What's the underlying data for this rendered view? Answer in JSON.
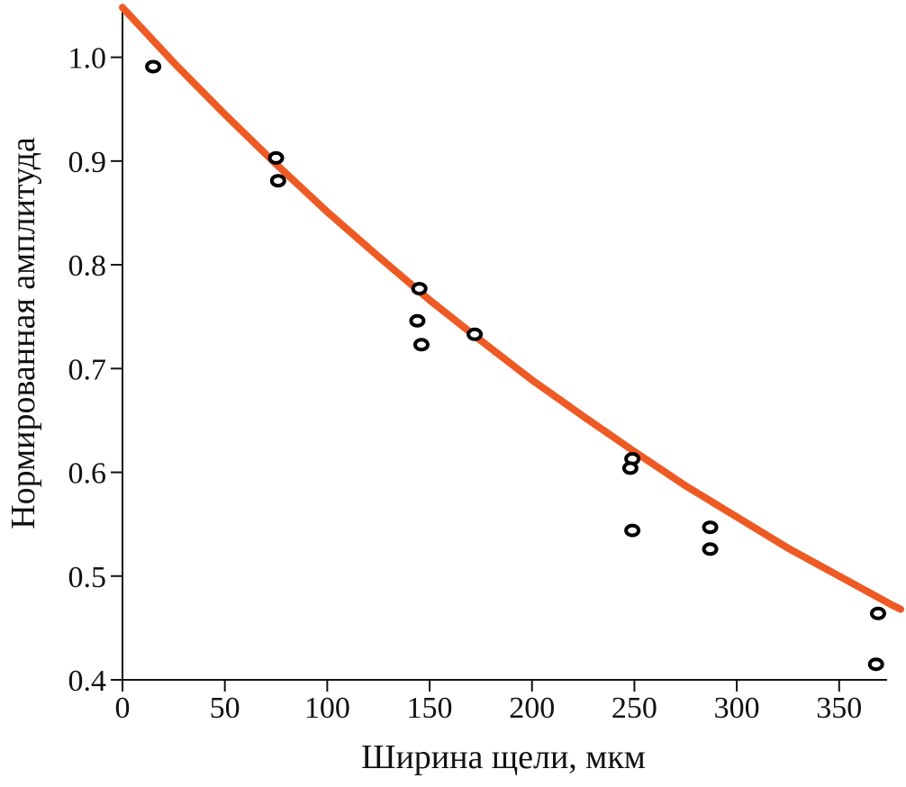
{
  "chart_data": {
    "type": "scatter",
    "xlabel": "Ширина щели, мкм",
    "ylabel": "Нормированная амплитуда",
    "xlim": [
      0,
      380
    ],
    "ylim": [
      0.4,
      1.05
    ],
    "grid": false,
    "x_ticks": [
      0,
      50,
      100,
      150,
      200,
      250,
      300,
      350
    ],
    "x_tick_labels": [
      "0",
      "50",
      "100",
      "150",
      "200",
      "250",
      "300",
      "350"
    ],
    "y_ticks": [
      0.4,
      0.5,
      0.6,
      0.7,
      0.8,
      0.9,
      1.0
    ],
    "y_tick_labels": [
      "0.4",
      "0.5",
      "0.6",
      "0.7",
      "0.8",
      "0.9",
      "1.0"
    ],
    "series": [
      {
        "kind": "points",
        "marker": "open-circle",
        "color": "#000000",
        "points": [
          {
            "x": 15,
            "y": 0.991
          },
          {
            "x": 75,
            "y": 0.903
          },
          {
            "x": 76,
            "y": 0.881
          },
          {
            "x": 145,
            "y": 0.777
          },
          {
            "x": 144,
            "y": 0.746
          },
          {
            "x": 146,
            "y": 0.723
          },
          {
            "x": 172,
            "y": 0.733
          },
          {
            "x": 249,
            "y": 0.613
          },
          {
            "x": 248,
            "y": 0.604
          },
          {
            "x": 249,
            "y": 0.544
          },
          {
            "x": 287,
            "y": 0.547
          },
          {
            "x": 287,
            "y": 0.526
          },
          {
            "x": 369,
            "y": 0.464
          },
          {
            "x": 368,
            "y": 0.415
          }
        ]
      },
      {
        "kind": "curve",
        "color": "#ee5a24",
        "points": [
          {
            "x": 0,
            "y": 1.048
          },
          {
            "x": 25,
            "y": 0.995
          },
          {
            "x": 50,
            "y": 0.945
          },
          {
            "x": 75,
            "y": 0.897
          },
          {
            "x": 100,
            "y": 0.851
          },
          {
            "x": 125,
            "y": 0.808
          },
          {
            "x": 150,
            "y": 0.766
          },
          {
            "x": 175,
            "y": 0.727
          },
          {
            "x": 200,
            "y": 0.689
          },
          {
            "x": 225,
            "y": 0.654
          },
          {
            "x": 250,
            "y": 0.62
          },
          {
            "x": 275,
            "y": 0.587
          },
          {
            "x": 300,
            "y": 0.557
          },
          {
            "x": 325,
            "y": 0.527
          },
          {
            "x": 350,
            "y": 0.5
          },
          {
            "x": 375,
            "y": 0.473
          },
          {
            "x": 380,
            "y": 0.468
          }
        ]
      }
    ]
  }
}
